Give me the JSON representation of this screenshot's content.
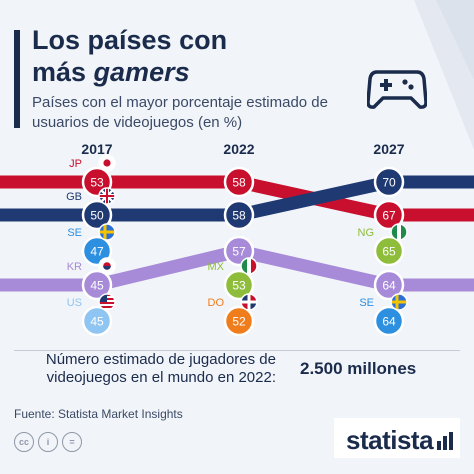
{
  "header": {
    "title_line1": "Los países con",
    "title_line2_a": "más ",
    "title_line2_b": "gamers",
    "subtitle": "Países con el mayor porcentaje estimado de usuarios de videojuegos (en %)"
  },
  "icons": {
    "header": "gamepad-icon",
    "license": [
      "cc-icon",
      "info-icon",
      "equals-icon"
    ],
    "brand": "statista-logo-mark-icon"
  },
  "colors": {
    "red": "#c8102e",
    "navy": "#1f3a73",
    "purple": "#a78bd9",
    "sky": "#2d8fe0",
    "light_blue": "#8ec5f2",
    "green": "#8dbd3a",
    "orange": "#f07d1c",
    "dark_text": "#1a2b4c"
  },
  "chart_data": {
    "type": "line",
    "x": [
      "2017",
      "2022",
      "2027"
    ],
    "series": [
      {
        "name": "",
        "color": "#c8102e",
        "values": [
          53,
          58,
          67
        ]
      },
      {
        "name": "",
        "color": "#1f3a73",
        "values": [
          50,
          58,
          70
        ]
      },
      {
        "name": "",
        "color": "#a78bd9",
        "values": [
          45,
          57,
          64
        ]
      }
    ],
    "markers": [
      {
        "year": "2017",
        "code": "JP",
        "value": 53,
        "color": "#c8102e",
        "flag": "jp"
      },
      {
        "year": "2017",
        "code": "GB",
        "value": 50,
        "color": "#1f3a73",
        "flag": "gb"
      },
      {
        "year": "2017",
        "code": "SE",
        "value": 47,
        "color": "#2d8fe0",
        "flag": "se"
      },
      {
        "year": "2017",
        "code": "KR",
        "value": 45,
        "color": "#a78bd9",
        "flag": "kr"
      },
      {
        "year": "2017",
        "code": "US",
        "value": 45,
        "color": "#8ec5f2",
        "flag": "us"
      },
      {
        "year": "2022",
        "code": "",
        "value": 58,
        "color": "#c8102e",
        "flag": ""
      },
      {
        "year": "2022",
        "code": "",
        "value": 58,
        "color": "#1f3a73",
        "flag": ""
      },
      {
        "year": "2022",
        "code": "",
        "value": 57,
        "color": "#a78bd9",
        "flag": ""
      },
      {
        "year": "2022",
        "code": "MX",
        "value": 53,
        "color": "#8dbd3a",
        "flag": "mx"
      },
      {
        "year": "2022",
        "code": "DO",
        "value": 52,
        "color": "#f07d1c",
        "flag": "do"
      },
      {
        "year": "2027",
        "code": "",
        "value": 70,
        "color": "#1f3a73",
        "flag": ""
      },
      {
        "year": "2027",
        "code": "",
        "value": 67,
        "color": "#c8102e",
        "flag": ""
      },
      {
        "year": "2027",
        "code": "NG",
        "value": 65,
        "color": "#8dbd3a",
        "flag": "ng"
      },
      {
        "year": "2027",
        "code": "",
        "value": 64,
        "color": "#a78bd9",
        "flag": ""
      },
      {
        "year": "2027",
        "code": "SE",
        "value": 64,
        "color": "#2d8fe0",
        "flag": "se"
      }
    ]
  },
  "footer": {
    "gamers_label": "Número estimado de jugadores de videojuegos en el mundo en 2022:",
    "gamers_value": "2.500 millones",
    "source": "Fuente: Statista Market Insights",
    "license_glyphs": [
      "cc",
      "i",
      "="
    ],
    "brand": "statista"
  }
}
